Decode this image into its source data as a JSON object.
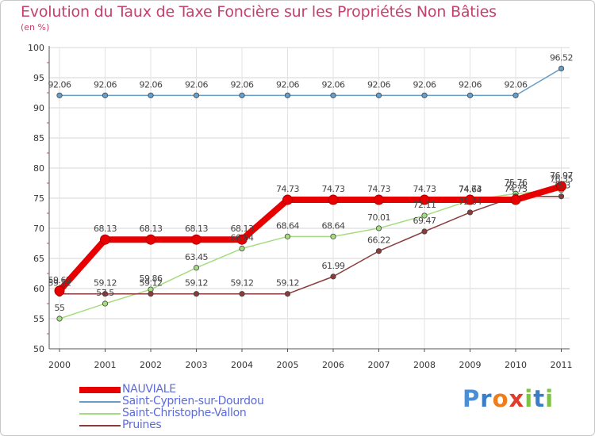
{
  "header": {
    "title": "Evolution du Taux de Taxe Foncière sur les Propriétés Non Bâties",
    "subtitle": "(en %)"
  },
  "logo": {
    "text": "Proxiti",
    "letters": [
      "P",
      "r",
      "o",
      "x",
      "i",
      "t",
      "i"
    ],
    "colors": [
      "#4a8fd6",
      "#3a7ec8",
      "#f07c1c",
      "#e23b2a",
      "#7cc244",
      "#3a7ec8",
      "#7cc244"
    ]
  },
  "chart_data": {
    "type": "line",
    "title": "Evolution du Taux de Taxe Foncière sur les Propriétés Non Bâties",
    "ylabel": "(en %)",
    "xlabel": "",
    "ylim": [
      50,
      100
    ],
    "yticks": [
      50,
      55,
      60,
      65,
      70,
      75,
      80,
      85,
      90,
      95,
      100
    ],
    "categories": [
      "2000",
      "2001",
      "2002",
      "2003",
      "2004",
      "2005",
      "2006",
      "2007",
      "2008",
      "2009",
      "2010",
      "2011"
    ],
    "series": [
      {
        "name": "NAUVIALE",
        "color": "#e80000",
        "width": 8,
        "values": [
          59.62,
          68.13,
          68.13,
          68.13,
          68.13,
          74.73,
          74.73,
          74.73,
          74.73,
          74.73,
          74.73,
          76.97
        ],
        "labels": [
          "59.62",
          "68.13",
          "68.13",
          "68.13",
          "68.13",
          "74.73",
          "74.73",
          "74.73",
          "74.73",
          "74.73",
          "74.73",
          "76.97"
        ]
      },
      {
        "name": "Saint-Cyprien-sur-Dourdou",
        "color": "#6a9ec6",
        "width": 1.5,
        "values": [
          92.06,
          92.06,
          92.06,
          92.06,
          92.06,
          92.06,
          92.06,
          92.06,
          92.06,
          92.06,
          92.06,
          96.52
        ],
        "labels": [
          "92.06",
          "92.06",
          "92.06",
          "92.06",
          "92.06",
          "92.06",
          "92.06",
          "92.06",
          "92.06",
          "92.06",
          "92.06",
          "96.52"
        ]
      },
      {
        "name": "Saint-Christophe-Vallon",
        "color": "#a6dc80",
        "width": 1.5,
        "values": [
          55,
          57.5,
          59.86,
          63.45,
          66.64,
          68.64,
          68.64,
          70.01,
          72.11,
          74.64,
          75.76,
          76.35
        ],
        "labels": [
          "55",
          "57.5",
          "59.86",
          "63.45",
          "66.64",
          "68.64",
          "68.64",
          "70.01",
          "72.11",
          "74.64",
          "75.76",
          "76.35"
        ]
      },
      {
        "name": "Pruines",
        "color": "#8a3c3c",
        "width": 1.5,
        "values": [
          59.12,
          59.12,
          59.12,
          59.12,
          59.12,
          59.12,
          61.99,
          66.22,
          69.47,
          72.64,
          75.3,
          75.3
        ],
        "labels": [
          "59.12",
          "59.12",
          "59.12",
          "59.12",
          "59.12",
          "59.12",
          "61.99",
          "66.22",
          "69.47",
          "72.64",
          "75.3",
          "75.3"
        ]
      }
    ]
  }
}
